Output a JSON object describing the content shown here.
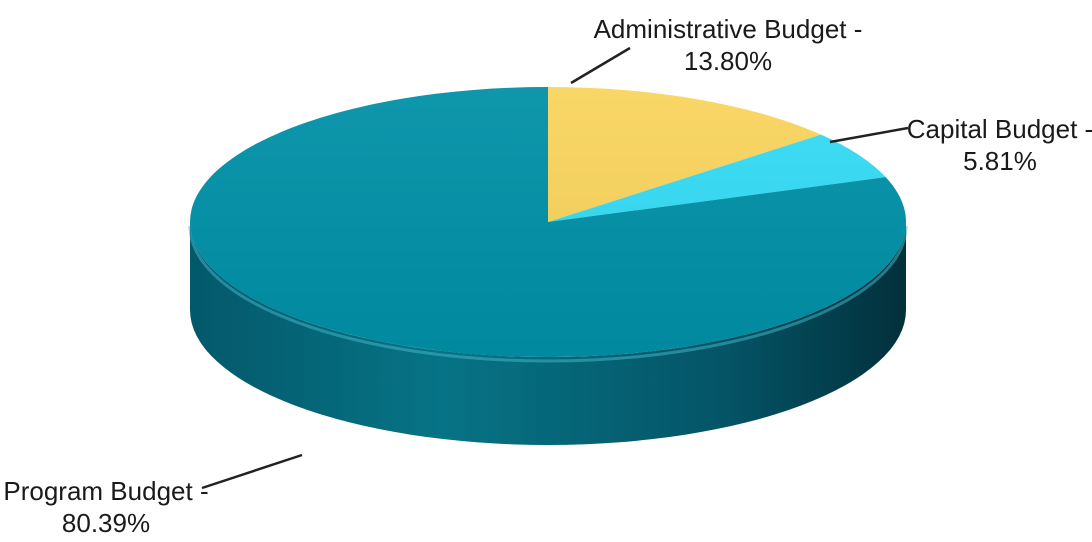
{
  "chart_data": {
    "type": "pie",
    "title": "",
    "slices": [
      {
        "label": "Administrative Budget -",
        "value_text": "13.80%",
        "value": 13.8,
        "color": "#f9d45c"
      },
      {
        "label": "Capital Budget -",
        "value_text": "5.81%",
        "value": 5.81,
        "color": "#34dbf5"
      },
      {
        "label": "Program Budget -",
        "value_text": "80.39%",
        "value": 80.39,
        "color": "#0090a7"
      }
    ],
    "style": "3d"
  }
}
